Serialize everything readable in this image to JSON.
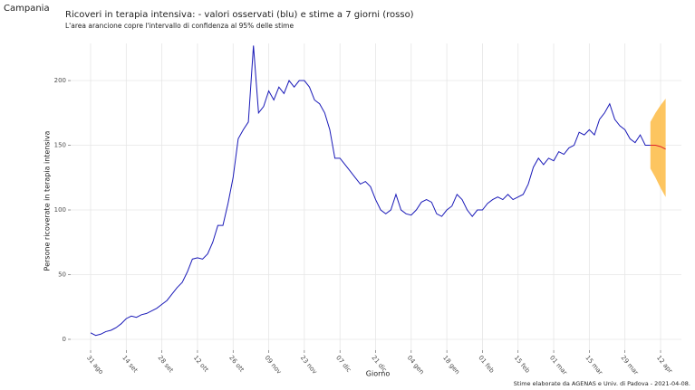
{
  "chart_data": {
    "type": "line",
    "region": "Campania",
    "title": "Ricoveri in terapia intensiva: - valori osservati (blu) e stime a 7 giorni (rosso)",
    "subtitle": "L'area arancione copre l'intervallo di confidenza al 95% delle stime",
    "y_label": "Persone ricoverate in terapia intensiva",
    "x_label": "Giorno",
    "caption": "Stime elaborate da AGENAS e Univ. di Padova - 2021-04-08.",
    "categories": [
      "31 ago",
      null,
      null,
      null,
      null,
      null,
      null,
      "14 set",
      null,
      null,
      null,
      null,
      null,
      null,
      "28 set",
      null,
      null,
      null,
      null,
      null,
      null,
      "12 ott",
      null,
      null,
      null,
      null,
      null,
      null,
      "26 ott",
      null,
      null,
      null,
      null,
      null,
      null,
      "09 nov",
      null,
      null,
      null,
      null,
      null,
      null,
      "23 nov",
      null,
      null,
      null,
      null,
      null,
      null,
      "07 dic",
      null,
      null,
      null,
      null,
      null,
      null,
      "21 dic",
      null,
      null,
      null,
      null,
      null,
      null,
      "04 gen",
      null,
      null,
      null,
      null,
      null,
      null,
      "18 gen",
      null,
      null,
      null,
      null,
      null,
      null,
      "01 feb",
      null,
      null,
      null,
      null,
      null,
      null,
      "15 feb",
      null,
      null,
      null,
      null,
      null,
      null,
      "01 mar",
      null,
      null,
      null,
      null,
      null,
      null,
      "15 mar",
      null,
      null,
      null,
      null,
      null,
      null,
      "29 mar",
      null,
      null,
      null,
      null,
      null,
      null,
      "12 apr",
      null
    ],
    "series": [
      {
        "name": "valori osservati",
        "color": "#1a1ab8",
        "values": [
          5,
          3,
          4,
          6,
          7,
          9,
          12,
          16,
          18,
          17,
          19,
          20,
          22,
          24,
          27,
          30,
          35,
          40,
          44,
          52,
          62,
          63,
          62,
          66,
          75,
          88,
          88,
          105,
          125,
          155,
          162,
          168,
          227,
          175,
          180,
          192,
          185,
          195,
          190,
          200,
          195,
          200,
          200,
          195,
          185,
          182,
          175,
          162,
          140,
          140,
          135,
          130,
          125,
          120,
          122,
          118,
          108,
          100,
          97,
          100,
          112,
          100,
          97,
          96,
          100,
          106,
          108,
          106,
          97,
          95,
          100,
          103,
          112,
          108,
          100,
          95,
          100,
          100,
          105,
          108,
          110,
          108,
          112,
          108,
          110,
          112,
          120,
          133,
          140,
          135,
          140,
          138,
          145,
          143,
          148,
          150,
          160,
          158,
          162,
          158,
          170,
          175,
          182,
          170,
          165,
          162,
          155,
          152,
          158,
          150,
          150,
          null,
          null,
          null
        ]
      },
      {
        "name": "stime",
        "color": "#e0202a",
        "values": [
          null,
          null,
          null,
          null,
          null,
          null,
          null,
          null,
          null,
          null,
          null,
          null,
          null,
          null,
          null,
          null,
          null,
          null,
          null,
          null,
          null,
          null,
          null,
          null,
          null,
          null,
          null,
          null,
          null,
          null,
          null,
          null,
          null,
          null,
          null,
          null,
          null,
          null,
          null,
          null,
          null,
          null,
          null,
          null,
          null,
          null,
          null,
          null,
          null,
          null,
          null,
          null,
          null,
          null,
          null,
          null,
          null,
          null,
          null,
          null,
          null,
          null,
          null,
          null,
          null,
          null,
          null,
          null,
          null,
          null,
          null,
          null,
          null,
          null,
          null,
          null,
          null,
          null,
          null,
          null,
          null,
          null,
          null,
          null,
          null,
          null,
          null,
          null,
          null,
          null,
          null,
          null,
          null,
          null,
          null,
          null,
          null,
          null,
          null,
          null,
          null,
          null,
          null,
          null,
          null,
          null,
          null,
          null,
          null,
          null,
          150,
          150,
          149,
          147
        ]
      }
    ],
    "band": {
      "color": "#fdbf4f",
      "lower": [
        null,
        null,
        null,
        null,
        null,
        null,
        null,
        null,
        null,
        null,
        null,
        null,
        null,
        null,
        null,
        null,
        null,
        null,
        null,
        null,
        null,
        null,
        null,
        null,
        null,
        null,
        null,
        null,
        null,
        null,
        null,
        null,
        null,
        null,
        null,
        null,
        null,
        null,
        null,
        null,
        null,
        null,
        null,
        null,
        null,
        null,
        null,
        null,
        null,
        null,
        null,
        null,
        null,
        null,
        null,
        null,
        null,
        null,
        null,
        null,
        null,
        null,
        null,
        null,
        null,
        null,
        null,
        null,
        null,
        null,
        null,
        null,
        null,
        null,
        null,
        null,
        null,
        null,
        null,
        null,
        null,
        null,
        null,
        null,
        null,
        null,
        null,
        null,
        null,
        null,
        null,
        null,
        null,
        null,
        null,
        null,
        null,
        null,
        null,
        null,
        null,
        null,
        null,
        null,
        null,
        null,
        null,
        null,
        null,
        null,
        132,
        125,
        117,
        110
      ],
      "upper": [
        null,
        null,
        null,
        null,
        null,
        null,
        null,
        null,
        null,
        null,
        null,
        null,
        null,
        null,
        null,
        null,
        null,
        null,
        null,
        null,
        null,
        null,
        null,
        null,
        null,
        null,
        null,
        null,
        null,
        null,
        null,
        null,
        null,
        null,
        null,
        null,
        null,
        null,
        null,
        null,
        null,
        null,
        null,
        null,
        null,
        null,
        null,
        null,
        null,
        null,
        null,
        null,
        null,
        null,
        null,
        null,
        null,
        null,
        null,
        null,
        null,
        null,
        null,
        null,
        null,
        null,
        null,
        null,
        null,
        null,
        null,
        null,
        null,
        null,
        null,
        null,
        null,
        null,
        null,
        null,
        null,
        null,
        null,
        null,
        null,
        null,
        null,
        null,
        null,
        null,
        null,
        null,
        null,
        null,
        null,
        null,
        null,
        null,
        null,
        null,
        null,
        null,
        null,
        null,
        null,
        null,
        null,
        null,
        null,
        null,
        168,
        175,
        181,
        186
      ]
    },
    "ylim": [
      -8.4,
      228.7
    ],
    "yticks": [
      0,
      50,
      100,
      150,
      200
    ],
    "grid": true
  }
}
